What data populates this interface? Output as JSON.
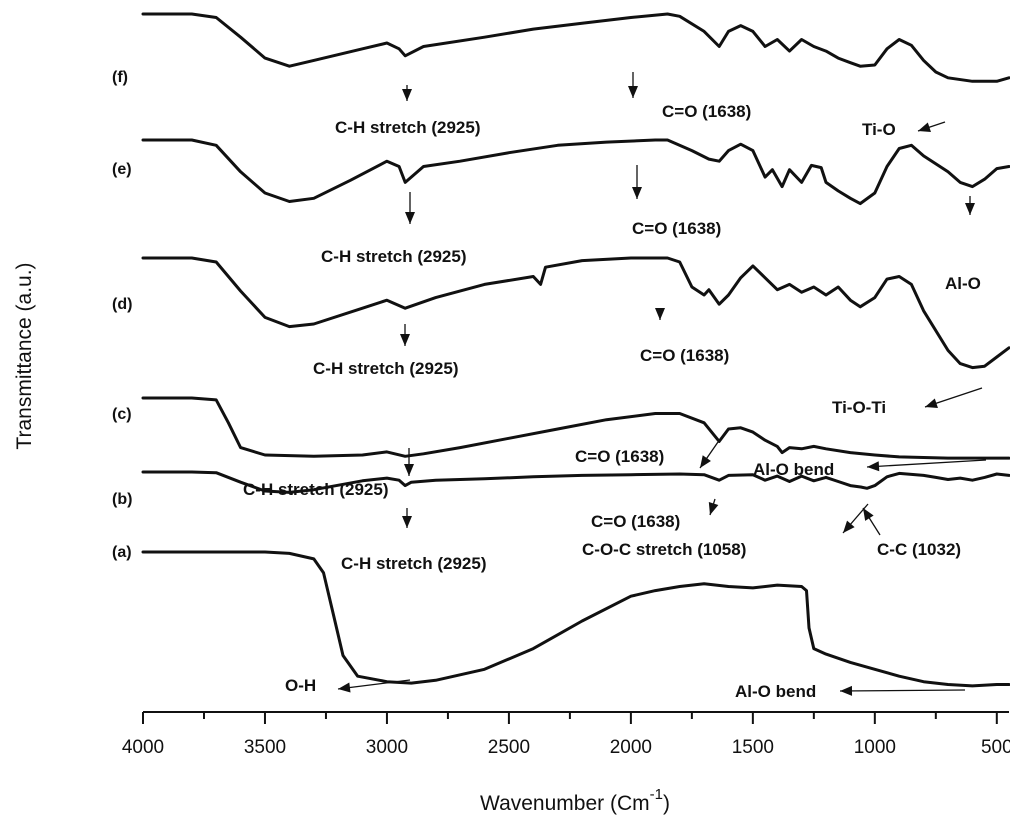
{
  "chart_data": {
    "type": "line",
    "title": "",
    "xlabel": "Wavenumber (Cm",
    "xlabel_superscript": "-1",
    "xlabel_suffix": ")",
    "ylabel": "Transmittance (a.u.)",
    "xlim": [
      4000,
      450
    ],
    "x_reversed": true,
    "x_ticks": [
      4000,
      3500,
      3000,
      2500,
      2000,
      1500,
      1000,
      500
    ],
    "y_ticks": false,
    "grid": false,
    "series": [
      {
        "name": "(a)",
        "points": [
          [
            4000,
            1.0
          ],
          [
            3500,
            1.0
          ],
          [
            3400,
            0.99
          ],
          [
            3300,
            0.95
          ],
          [
            3260,
            0.85
          ],
          [
            3220,
            0.55
          ],
          [
            3180,
            0.25
          ],
          [
            3120,
            0.1
          ],
          [
            3000,
            0.06
          ],
          [
            2900,
            0.05
          ],
          [
            2800,
            0.07
          ],
          [
            2600,
            0.15
          ],
          [
            2400,
            0.3
          ],
          [
            2200,
            0.5
          ],
          [
            2000,
            0.68
          ],
          [
            1900,
            0.72
          ],
          [
            1800,
            0.75
          ],
          [
            1700,
            0.77
          ],
          [
            1600,
            0.75
          ],
          [
            1500,
            0.74
          ],
          [
            1400,
            0.76
          ],
          [
            1300,
            0.75
          ],
          [
            1280,
            0.72
          ],
          [
            1270,
            0.45
          ],
          [
            1250,
            0.3
          ],
          [
            1200,
            0.26
          ],
          [
            1100,
            0.2
          ],
          [
            1000,
            0.15
          ],
          [
            900,
            0.1
          ],
          [
            800,
            0.06
          ],
          [
            700,
            0.04
          ],
          [
            600,
            0.03
          ],
          [
            500,
            0.04
          ],
          [
            450,
            0.04
          ]
        ]
      },
      {
        "name": "(b)",
        "points": [
          [
            4000,
            1.0
          ],
          [
            3800,
            1.0
          ],
          [
            3700,
            0.99
          ],
          [
            3600,
            0.85
          ],
          [
            3500,
            0.72
          ],
          [
            3400,
            0.7
          ],
          [
            3300,
            0.74
          ],
          [
            3100,
            0.87
          ],
          [
            3000,
            0.91
          ],
          [
            2950,
            0.88
          ],
          [
            2925,
            0.8
          ],
          [
            2900,
            0.85
          ],
          [
            2800,
            0.88
          ],
          [
            2600,
            0.9
          ],
          [
            2400,
            0.93
          ],
          [
            2200,
            0.95
          ],
          [
            2000,
            0.96
          ],
          [
            1800,
            0.97
          ],
          [
            1700,
            0.96
          ],
          [
            1638,
            0.88
          ],
          [
            1600,
            0.95
          ],
          [
            1500,
            0.96
          ],
          [
            1450,
            0.88
          ],
          [
            1400,
            0.94
          ],
          [
            1350,
            0.86
          ],
          [
            1300,
            0.94
          ],
          [
            1250,
            0.87
          ],
          [
            1200,
            0.92
          ],
          [
            1150,
            0.86
          ],
          [
            1100,
            0.8
          ],
          [
            1058,
            0.78
          ],
          [
            1032,
            0.76
          ],
          [
            1000,
            0.8
          ],
          [
            950,
            0.93
          ],
          [
            900,
            0.98
          ],
          [
            800,
            0.95
          ],
          [
            750,
            0.92
          ],
          [
            700,
            0.89
          ],
          [
            650,
            0.91
          ],
          [
            600,
            0.88
          ],
          [
            550,
            0.92
          ],
          [
            500,
            0.97
          ],
          [
            450,
            0.95
          ]
        ]
      },
      {
        "name": "(c)",
        "points": [
          [
            4000,
            1.0
          ],
          [
            3800,
            1.0
          ],
          [
            3700,
            0.97
          ],
          [
            3650,
            0.6
          ],
          [
            3600,
            0.2
          ],
          [
            3500,
            0.08
          ],
          [
            3300,
            0.06
          ],
          [
            3100,
            0.08
          ],
          [
            3000,
            0.13
          ],
          [
            2925,
            0.06
          ],
          [
            2850,
            0.1
          ],
          [
            2700,
            0.2
          ],
          [
            2500,
            0.35
          ],
          [
            2300,
            0.5
          ],
          [
            2100,
            0.65
          ],
          [
            1900,
            0.75
          ],
          [
            1800,
            0.75
          ],
          [
            1700,
            0.6
          ],
          [
            1638,
            0.3
          ],
          [
            1600,
            0.5
          ],
          [
            1550,
            0.52
          ],
          [
            1500,
            0.45
          ],
          [
            1450,
            0.32
          ],
          [
            1400,
            0.22
          ],
          [
            1380,
            0.12
          ],
          [
            1350,
            0.2
          ],
          [
            1300,
            0.18
          ],
          [
            1250,
            0.22
          ],
          [
            1200,
            0.18
          ],
          [
            1100,
            0.12
          ],
          [
            1000,
            0.08
          ],
          [
            900,
            0.05
          ],
          [
            700,
            0.03
          ],
          [
            450,
            0.03
          ]
        ]
      },
      {
        "name": "(d)",
        "points": [
          [
            4000,
            1.0
          ],
          [
            3800,
            1.0
          ],
          [
            3700,
            0.97
          ],
          [
            3600,
            0.75
          ],
          [
            3500,
            0.55
          ],
          [
            3400,
            0.48
          ],
          [
            3300,
            0.5
          ],
          [
            3100,
            0.62
          ],
          [
            3000,
            0.68
          ],
          [
            2925,
            0.62
          ],
          [
            2800,
            0.7
          ],
          [
            2600,
            0.8
          ],
          [
            2400,
            0.86
          ],
          [
            2370,
            0.8
          ],
          [
            2350,
            0.93
          ],
          [
            2200,
            0.98
          ],
          [
            2000,
            1.0
          ],
          [
            1850,
            1.0
          ],
          [
            1800,
            0.97
          ],
          [
            1750,
            0.78
          ],
          [
            1700,
            0.72
          ],
          [
            1680,
            0.76
          ],
          [
            1638,
            0.65
          ],
          [
            1600,
            0.72
          ],
          [
            1550,
            0.85
          ],
          [
            1500,
            0.94
          ],
          [
            1450,
            0.85
          ],
          [
            1400,
            0.76
          ],
          [
            1350,
            0.8
          ],
          [
            1300,
            0.74
          ],
          [
            1250,
            0.78
          ],
          [
            1200,
            0.72
          ],
          [
            1150,
            0.78
          ],
          [
            1100,
            0.68
          ],
          [
            1060,
            0.63
          ],
          [
            1000,
            0.7
          ],
          [
            950,
            0.84
          ],
          [
            900,
            0.86
          ],
          [
            850,
            0.8
          ],
          [
            800,
            0.6
          ],
          [
            700,
            0.3
          ],
          [
            650,
            0.2
          ],
          [
            600,
            0.17
          ],
          [
            550,
            0.18
          ],
          [
            500,
            0.25
          ],
          [
            450,
            0.32
          ]
        ]
      },
      {
        "name": "(e)",
        "points": [
          [
            4000,
            1.0
          ],
          [
            3800,
            1.0
          ],
          [
            3700,
            0.95
          ],
          [
            3600,
            0.7
          ],
          [
            3500,
            0.5
          ],
          [
            3400,
            0.42
          ],
          [
            3300,
            0.45
          ],
          [
            3150,
            0.62
          ],
          [
            3000,
            0.8
          ],
          [
            2950,
            0.75
          ],
          [
            2925,
            0.6
          ],
          [
            2850,
            0.75
          ],
          [
            2700,
            0.8
          ],
          [
            2500,
            0.88
          ],
          [
            2300,
            0.95
          ],
          [
            2100,
            0.98
          ],
          [
            1900,
            1.0
          ],
          [
            1850,
            1.0
          ],
          [
            1750,
            0.9
          ],
          [
            1680,
            0.82
          ],
          [
            1638,
            0.8
          ],
          [
            1600,
            0.9
          ],
          [
            1550,
            0.96
          ],
          [
            1500,
            0.9
          ],
          [
            1450,
            0.65
          ],
          [
            1420,
            0.72
          ],
          [
            1380,
            0.56
          ],
          [
            1350,
            0.72
          ],
          [
            1300,
            0.6
          ],
          [
            1260,
            0.76
          ],
          [
            1220,
            0.74
          ],
          [
            1200,
            0.6
          ],
          [
            1150,
            0.52
          ],
          [
            1100,
            0.45
          ],
          [
            1060,
            0.4
          ],
          [
            1000,
            0.5
          ],
          [
            950,
            0.75
          ],
          [
            900,
            0.92
          ],
          [
            850,
            0.95
          ],
          [
            800,
            0.85
          ],
          [
            700,
            0.7
          ],
          [
            650,
            0.6
          ],
          [
            600,
            0.56
          ],
          [
            550,
            0.63
          ],
          [
            500,
            0.73
          ],
          [
            450,
            0.75
          ]
        ]
      },
      {
        "name": "(f)",
        "points": [
          [
            4000,
            1.0
          ],
          [
            3800,
            1.0
          ],
          [
            3700,
            0.97
          ],
          [
            3600,
            0.8
          ],
          [
            3500,
            0.62
          ],
          [
            3400,
            0.55
          ],
          [
            3300,
            0.6
          ],
          [
            3100,
            0.7
          ],
          [
            3000,
            0.75
          ],
          [
            2950,
            0.7
          ],
          [
            2925,
            0.64
          ],
          [
            2850,
            0.72
          ],
          [
            2600,
            0.8
          ],
          [
            2400,
            0.87
          ],
          [
            2200,
            0.92
          ],
          [
            2000,
            0.97
          ],
          [
            1850,
            1.0
          ],
          [
            1800,
            0.98
          ],
          [
            1700,
            0.85
          ],
          [
            1638,
            0.72
          ],
          [
            1600,
            0.85
          ],
          [
            1550,
            0.9
          ],
          [
            1500,
            0.85
          ],
          [
            1450,
            0.72
          ],
          [
            1400,
            0.78
          ],
          [
            1350,
            0.68
          ],
          [
            1300,
            0.78
          ],
          [
            1250,
            0.72
          ],
          [
            1200,
            0.68
          ],
          [
            1150,
            0.62
          ],
          [
            1100,
            0.58
          ],
          [
            1060,
            0.55
          ],
          [
            1000,
            0.56
          ],
          [
            950,
            0.7
          ],
          [
            900,
            0.78
          ],
          [
            850,
            0.73
          ],
          [
            800,
            0.6
          ],
          [
            750,
            0.5
          ],
          [
            700,
            0.45
          ],
          [
            600,
            0.42
          ],
          [
            500,
            0.42
          ],
          [
            450,
            0.45
          ]
        ]
      }
    ],
    "curve_labels": [
      "(a)",
      "(b)",
      "(c)",
      "(d)",
      "(e)",
      "(f)"
    ],
    "annotations": [
      {
        "series": "(f)",
        "text": "C-H stretch (2925)",
        "x": 2925
      },
      {
        "series": "(f)",
        "text": "C=O (1638)",
        "x": 1638
      },
      {
        "series": "(f)",
        "text": "Ti-O",
        "x": 600
      },
      {
        "series": "(e)",
        "text": "C-H stretch (2925)",
        "x": 2925
      },
      {
        "series": "(e)",
        "text": "C=O (1638)",
        "x": 1638
      },
      {
        "series": "(e)",
        "text": "Al-O",
        "x": 600
      },
      {
        "series": "(d)",
        "text": "C-H stretch (2925)",
        "x": 2925
      },
      {
        "series": "(d)",
        "text": "C=O (1638)",
        "x": 1638
      },
      {
        "series": "(d)",
        "text": "Ti-O-Ti",
        "x": 600
      },
      {
        "series": "(c)",
        "text": "C-H stretch (2925)",
        "x": 2925
      },
      {
        "series": "(c)",
        "text": "C=O (1638)",
        "x": 1638
      },
      {
        "series": "(c)",
        "text": "Al-O bend",
        "x": 500
      },
      {
        "series": "(b)",
        "text": "C-H stretch (2925)",
        "x": 2925
      },
      {
        "series": "(b)",
        "text": "C=O (1638)",
        "x": 1638
      },
      {
        "series": "(b)",
        "text": "C-O-C stretch (1058)",
        "x": 1058
      },
      {
        "series": "(b)",
        "text": "C-C (1032)",
        "x": 1032
      },
      {
        "series": "(a)",
        "text": "O-H",
        "x": 2925
      },
      {
        "series": "(a)",
        "text": "Al-O bend",
        "x": 600
      }
    ]
  }
}
